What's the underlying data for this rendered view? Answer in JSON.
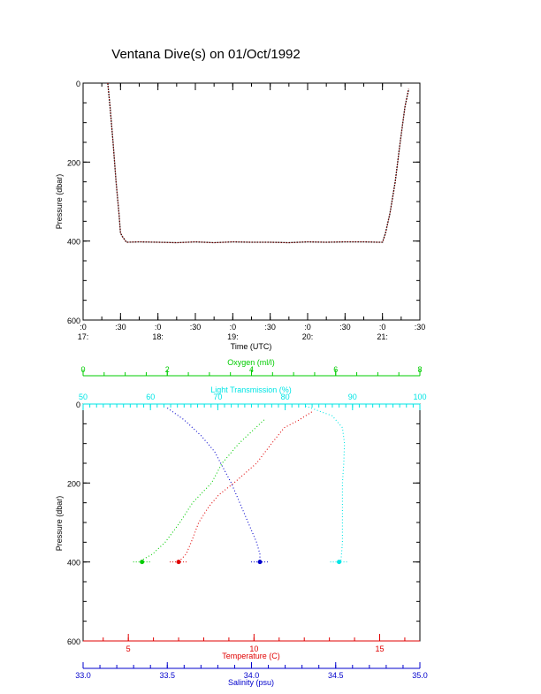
{
  "title": "Ventana Dive(s) on 01/Oct/1992",
  "colors": {
    "axis": "#000000",
    "oxygen": "#00cc00",
    "transmission": "#00e5e5",
    "temperature": "#e00000",
    "salinity": "#0000cc",
    "trace_black": "#000000",
    "trace_red": "#e00000"
  },
  "chart_data": [
    {
      "type": "line",
      "title": "Ventana Dive(s) on 01/Oct/1992",
      "xlabel": "Time (UTC)",
      "ylabel": "Pressure (dbar)",
      "ylim": [
        600,
        0
      ],
      "y_ticks": [
        "0",
        "200",
        "400",
        "600"
      ],
      "x_tick_labels": [
        {
          "top": ":0",
          "bottom": "17:"
        },
        {
          "top": ":30",
          "bottom": ""
        },
        {
          "top": ":0",
          "bottom": "18:"
        },
        {
          "top": ":30",
          "bottom": ""
        },
        {
          "top": ":0",
          "bottom": "19:"
        },
        {
          "top": ":30",
          "bottom": ""
        },
        {
          "top": ":0",
          "bottom": "20:"
        },
        {
          "top": ":30",
          "bottom": ""
        },
        {
          "top": ":0",
          "bottom": "21:"
        },
        {
          "top": ":30",
          "bottom": ""
        }
      ],
      "series": [
        {
          "x_hours": [
            17.33,
            17.36,
            17.4,
            17.44,
            17.48,
            17.5,
            17.53,
            17.58,
            17.75,
            18.0,
            18.25,
            18.5,
            18.75,
            19.0,
            19.25,
            19.5,
            19.75,
            20.0,
            20.25,
            20.5,
            20.75,
            20.95,
            21.0,
            21.04,
            21.1,
            21.17,
            21.23,
            21.3,
            21.35
          ],
          "pressure": [
            0,
            60,
            150,
            250,
            330,
            380,
            390,
            403,
            402,
            403,
            404,
            402,
            404,
            402,
            403,
            403,
            404,
            402,
            403,
            402,
            402,
            403,
            403,
            380,
            330,
            250,
            160,
            60,
            15
          ]
        }
      ]
    },
    {
      "type": "scatter",
      "ylabel": "Pressure (dbar)",
      "ylim": [
        600,
        0
      ],
      "y_ticks": [
        "0",
        "200",
        "400",
        "600"
      ],
      "axes": {
        "oxygen": {
          "label": "Oxygen (ml/l)",
          "range": [
            0,
            8
          ],
          "ticks": [
            "0",
            "2",
            "4",
            "6",
            "8"
          ]
        },
        "transmission": {
          "label": "Light Transmission (%)",
          "range": [
            50,
            100
          ],
          "ticks": [
            "50",
            "60",
            "70",
            "80",
            "90",
            "100"
          ]
        },
        "temperature": {
          "label": "Temperature (C)",
          "range": [
            3.2,
            16.6
          ],
          "ticks": [
            "5",
            "10",
            "15"
          ]
        },
        "salinity": {
          "label": "Salinity (psu)",
          "range": [
            33.0,
            35.0
          ],
          "ticks": [
            "33.0",
            "33.5",
            "34.0",
            "34.5",
            "35.0"
          ]
        }
      },
      "series": [
        {
          "name": "Oxygen (ml/l)",
          "pressure": [
            40,
            60,
            100,
            150,
            200,
            250,
            300,
            350,
            380,
            395,
            400
          ],
          "values": [
            4.3,
            4.1,
            3.7,
            3.3,
            3.05,
            2.6,
            2.3,
            1.95,
            1.65,
            1.4,
            1.4
          ]
        },
        {
          "name": "Light Transmission (%)",
          "pressure": [
            5,
            30,
            60,
            100,
            150,
            200,
            250,
            300,
            350,
            395,
            400
          ],
          "values": [
            83,
            87,
            88.5,
            88.8,
            88.7,
            88.5,
            88.5,
            88.5,
            88.5,
            88.3,
            88.0
          ]
        },
        {
          "name": "Temperature (C)",
          "pressure": [
            20,
            40,
            60,
            100,
            150,
            200,
            230,
            260,
            300,
            350,
            380,
            400
          ],
          "values": [
            12.3,
            11.8,
            11.2,
            10.7,
            10.1,
            9.2,
            8.6,
            8.2,
            7.8,
            7.5,
            7.3,
            7.0
          ]
        },
        {
          "name": "Salinity (psu)",
          "pressure": [
            10,
            40,
            80,
            120,
            160,
            200,
            250,
            300,
            350,
            380,
            400
          ],
          "values": [
            33.5,
            33.6,
            33.7,
            33.78,
            33.83,
            33.88,
            33.93,
            33.98,
            34.03,
            34.05,
            34.05
          ]
        }
      ]
    }
  ]
}
